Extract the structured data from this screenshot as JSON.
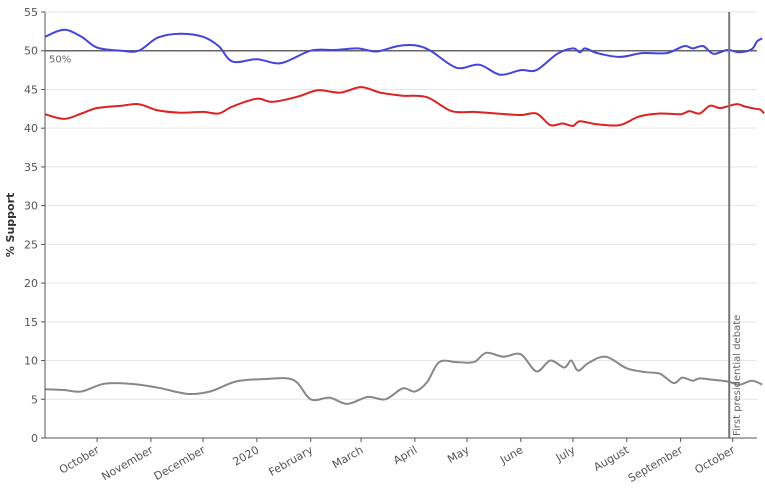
{
  "chart_data": {
    "type": "line",
    "title": "",
    "xlabel": "",
    "ylabel": "% Support",
    "ylim": [
      0,
      55
    ],
    "yticks": [
      0,
      5,
      10,
      15,
      20,
      25,
      30,
      35,
      40,
      45,
      50,
      55
    ],
    "xlim": [
      "2019-09-01",
      "2020-10-15"
    ],
    "xticks": [
      {
        "label": "October",
        "date": "2019-10-01"
      },
      {
        "label": "November",
        "date": "2019-11-01"
      },
      {
        "label": "December",
        "date": "2019-12-01"
      },
      {
        "label": "2020",
        "date": "2020-01-01"
      },
      {
        "label": "February",
        "date": "2020-02-01"
      },
      {
        "label": "March",
        "date": "2020-03-01"
      },
      {
        "label": "April",
        "date": "2020-04-01"
      },
      {
        "label": "May",
        "date": "2020-05-01"
      },
      {
        "label": "June",
        "date": "2020-06-01"
      },
      {
        "label": "July",
        "date": "2020-07-01"
      },
      {
        "label": "August",
        "date": "2020-08-01"
      },
      {
        "label": "September",
        "date": "2020-09-01"
      },
      {
        "label": "October",
        "date": "2020-10-01"
      }
    ],
    "grid": true,
    "reference_line": {
      "value": 50,
      "label": "50%"
    },
    "event_line": {
      "date": "2020-09-29",
      "label": "First presidential debate"
    },
    "series": [
      {
        "color": "#4444dd",
        "points": [
          [
            "2019-09-01",
            51.8
          ],
          [
            "2019-09-12",
            52.7
          ],
          [
            "2019-09-22",
            51.8
          ],
          [
            "2019-10-01",
            50.4
          ],
          [
            "2019-10-15",
            50.0
          ],
          [
            "2019-10-25",
            50.0
          ],
          [
            "2019-11-05",
            51.7
          ],
          [
            "2019-11-18",
            52.2
          ],
          [
            "2019-12-01",
            51.8
          ],
          [
            "2019-12-10",
            50.6
          ],
          [
            "2019-12-18",
            48.6
          ],
          [
            "2020-01-01",
            48.9
          ],
          [
            "2020-01-15",
            48.4
          ],
          [
            "2020-02-01",
            50.0
          ],
          [
            "2020-02-15",
            50.1
          ],
          [
            "2020-02-28",
            50.3
          ],
          [
            "2020-03-10",
            49.9
          ],
          [
            "2020-03-22",
            50.6
          ],
          [
            "2020-04-01",
            50.7
          ],
          [
            "2020-04-10",
            50.0
          ],
          [
            "2020-04-25",
            47.8
          ],
          [
            "2020-05-08",
            48.2
          ],
          [
            "2020-05-20",
            46.9
          ],
          [
            "2020-06-01",
            47.5
          ],
          [
            "2020-06-10",
            47.5
          ],
          [
            "2020-06-22",
            49.6
          ],
          [
            "2020-07-01",
            50.3
          ],
          [
            "2020-07-05",
            49.8
          ],
          [
            "2020-07-08",
            50.3
          ],
          [
            "2020-07-15",
            49.7
          ],
          [
            "2020-07-28",
            49.2
          ],
          [
            "2020-08-10",
            49.7
          ],
          [
            "2020-08-24",
            49.7
          ],
          [
            "2020-09-03",
            50.6
          ],
          [
            "2020-09-08",
            50.3
          ],
          [
            "2020-09-14",
            50.6
          ],
          [
            "2020-09-20",
            49.6
          ],
          [
            "2020-09-28",
            50.1
          ],
          [
            "2020-10-05",
            49.8
          ],
          [
            "2020-10-12",
            50.2
          ],
          [
            "2020-10-15",
            51.2
          ],
          [
            "2020-10-18",
            51.6
          ]
        ]
      },
      {
        "color": "#dd2222",
        "points": [
          [
            "2019-09-01",
            41.8
          ],
          [
            "2019-09-12",
            41.2
          ],
          [
            "2019-09-22",
            41.9
          ],
          [
            "2019-10-01",
            42.6
          ],
          [
            "2019-10-15",
            42.9
          ],
          [
            "2019-10-25",
            43.1
          ],
          [
            "2019-11-05",
            42.3
          ],
          [
            "2019-11-18",
            42.0
          ],
          [
            "2019-12-01",
            42.1
          ],
          [
            "2019-12-10",
            41.9
          ],
          [
            "2019-12-18",
            42.8
          ],
          [
            "2020-01-01",
            43.8
          ],
          [
            "2020-01-10",
            43.4
          ],
          [
            "2020-01-25",
            44.1
          ],
          [
            "2020-02-05",
            44.9
          ],
          [
            "2020-02-18",
            44.6
          ],
          [
            "2020-03-01",
            45.3
          ],
          [
            "2020-03-12",
            44.6
          ],
          [
            "2020-03-25",
            44.2
          ],
          [
            "2020-04-08",
            44.0
          ],
          [
            "2020-04-22",
            42.2
          ],
          [
            "2020-05-05",
            42.1
          ],
          [
            "2020-05-18",
            41.9
          ],
          [
            "2020-06-01",
            41.7
          ],
          [
            "2020-06-10",
            41.9
          ],
          [
            "2020-06-18",
            40.4
          ],
          [
            "2020-06-25",
            40.6
          ],
          [
            "2020-07-01",
            40.3
          ],
          [
            "2020-07-05",
            40.9
          ],
          [
            "2020-07-15",
            40.5
          ],
          [
            "2020-07-28",
            40.4
          ],
          [
            "2020-08-08",
            41.5
          ],
          [
            "2020-08-20",
            41.9
          ],
          [
            "2020-09-01",
            41.8
          ],
          [
            "2020-09-06",
            42.2
          ],
          [
            "2020-09-12",
            41.9
          ],
          [
            "2020-09-18",
            42.9
          ],
          [
            "2020-09-24",
            42.6
          ],
          [
            "2020-10-03",
            43.1
          ],
          [
            "2020-10-08",
            42.8
          ],
          [
            "2020-10-14",
            42.5
          ],
          [
            "2020-10-17",
            42.4
          ],
          [
            "2020-10-19",
            41.9
          ]
        ]
      },
      {
        "color": "#888888",
        "points": [
          [
            "2019-09-01",
            6.3
          ],
          [
            "2019-09-12",
            6.2
          ],
          [
            "2019-09-22",
            6.0
          ],
          [
            "2019-10-05",
            7.0
          ],
          [
            "2019-10-20",
            7.0
          ],
          [
            "2019-11-05",
            6.5
          ],
          [
            "2019-11-22",
            5.7
          ],
          [
            "2019-12-05",
            6.0
          ],
          [
            "2019-12-20",
            7.3
          ],
          [
            "2020-01-05",
            7.6
          ],
          [
            "2020-01-22",
            7.5
          ],
          [
            "2020-02-01",
            5.0
          ],
          [
            "2020-02-12",
            5.2
          ],
          [
            "2020-02-22",
            4.4
          ],
          [
            "2020-03-05",
            5.3
          ],
          [
            "2020-03-15",
            5.0
          ],
          [
            "2020-03-25",
            6.4
          ],
          [
            "2020-04-01",
            6.0
          ],
          [
            "2020-04-08",
            7.2
          ],
          [
            "2020-04-15",
            9.8
          ],
          [
            "2020-04-25",
            9.8
          ],
          [
            "2020-05-05",
            9.8
          ],
          [
            "2020-05-12",
            11.0
          ],
          [
            "2020-05-22",
            10.5
          ],
          [
            "2020-06-01",
            10.8
          ],
          [
            "2020-06-10",
            8.6
          ],
          [
            "2020-06-18",
            10.0
          ],
          [
            "2020-06-26",
            9.1
          ],
          [
            "2020-06-30",
            10.0
          ],
          [
            "2020-07-04",
            8.7
          ],
          [
            "2020-07-10",
            9.7
          ],
          [
            "2020-07-20",
            10.5
          ],
          [
            "2020-08-01",
            9.0
          ],
          [
            "2020-08-12",
            8.5
          ],
          [
            "2020-08-20",
            8.3
          ],
          [
            "2020-08-28",
            7.1
          ],
          [
            "2020-09-02",
            7.8
          ],
          [
            "2020-09-08",
            7.4
          ],
          [
            "2020-09-12",
            7.7
          ],
          [
            "2020-09-20",
            7.5
          ],
          [
            "2020-09-28",
            7.3
          ],
          [
            "2020-10-05",
            6.9
          ],
          [
            "2020-10-12",
            7.4
          ],
          [
            "2020-10-18",
            6.9
          ]
        ]
      }
    ]
  }
}
